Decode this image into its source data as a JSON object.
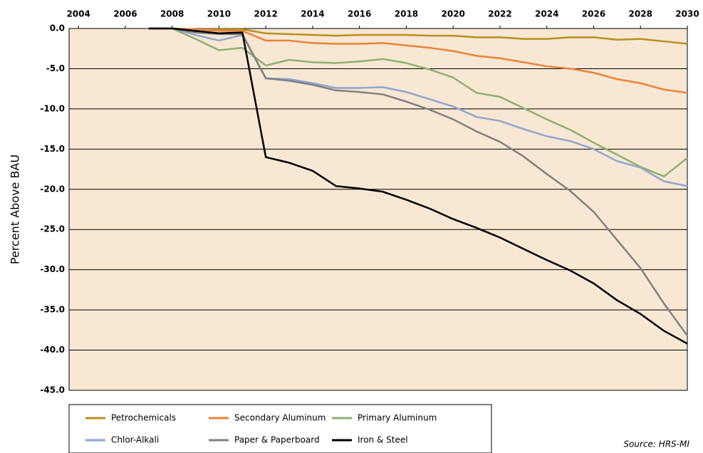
{
  "chart_data": {
    "type": "line",
    "y_label": "Percent Above BAU",
    "source": "Source: HRS-MI",
    "x": [
      2007,
      2008,
      2009,
      2010,
      2011,
      2012,
      2013,
      2014,
      2015,
      2016,
      2017,
      2018,
      2019,
      2020,
      2021,
      2022,
      2023,
      2024,
      2025,
      2026,
      2027,
      2028,
      2029,
      2030
    ],
    "xlim": [
      2003.6,
      2030
    ],
    "xticks": [
      2004,
      2006,
      2008,
      2010,
      2012,
      2014,
      2016,
      2018,
      2020,
      2022,
      2024,
      2026,
      2028,
      2030
    ],
    "ylim": [
      -45,
      0
    ],
    "yticks": [
      {
        "value": 0,
        "label": "0.0"
      },
      {
        "value": -5,
        "label": "-5.0"
      },
      {
        "value": -10,
        "label": "-10.0"
      },
      {
        "value": -15,
        "label": "-15.0"
      },
      {
        "value": -20,
        "label": "-20.0"
      },
      {
        "value": -25,
        "label": "-25.0"
      },
      {
        "value": -30,
        "label": "-30.0"
      },
      {
        "value": -35,
        "label": "-35.0"
      },
      {
        "value": -40,
        "label": "-40.0"
      },
      {
        "value": -45,
        "label": "-45.0"
      }
    ],
    "grid": true,
    "legend": "bottom",
    "series": [
      {
        "name": "Petrochemicals",
        "color": "#b8901f",
        "values": [
          0,
          0,
          -0.1,
          -0.1,
          -0.1,
          -0.6,
          -0.7,
          -0.8,
          -0.9,
          -0.8,
          -0.8,
          -0.8,
          -0.9,
          -0.9,
          -1.1,
          -1.1,
          -1.3,
          -1.3,
          -1.1,
          -1.1,
          -1.4,
          -1.3,
          -1.6,
          -1.9
        ]
      },
      {
        "name": "Secondary Aluminum",
        "color": "#e8843a",
        "values": [
          0,
          0,
          -0.1,
          -0.3,
          -0.3,
          -1.5,
          -1.5,
          -1.8,
          -1.9,
          -1.9,
          -1.8,
          -2.1,
          -2.4,
          -2.8,
          -3.4,
          -3.7,
          -4.2,
          -4.7,
          -5.0,
          -5.5,
          -6.3,
          -6.8,
          -7.6,
          -8.0
        ]
      },
      {
        "name": "Primary Aluminum",
        "color": "#8fb070",
        "values": [
          0,
          0,
          -1.3,
          -2.7,
          -2.4,
          -4.6,
          -3.9,
          -4.2,
          -4.3,
          -4.1,
          -3.8,
          -4.3,
          -5.1,
          -6.1,
          -8.0,
          -8.5,
          -9.9,
          -11.3,
          -12.6,
          -14.2,
          -15.7,
          -17.2,
          -18.4,
          -16.1
        ]
      },
      {
        "name": "Chlor-Alkali",
        "color": "#8ea6cc",
        "values": [
          0,
          0,
          -0.8,
          -1.5,
          -0.8,
          -6.2,
          -6.3,
          -6.8,
          -7.4,
          -7.4,
          -7.3,
          -7.9,
          -8.8,
          -9.7,
          -11.0,
          -11.5,
          -12.5,
          -13.4,
          -14.0,
          -15.0,
          -16.5,
          -17.3,
          -19.0,
          -19.6
        ]
      },
      {
        "name": "Paper & Paperboard",
        "color": "#808080",
        "values": [
          0,
          0,
          -0.5,
          -0.7,
          -0.7,
          -6.2,
          -6.5,
          -7.0,
          -7.7,
          -7.9,
          -8.2,
          -9.1,
          -10.1,
          -11.3,
          -12.8,
          -14.1,
          -15.9,
          -18.1,
          -20.2,
          -22.8,
          -26.3,
          -29.8,
          -34.2,
          -38.2
        ]
      },
      {
        "name": "Iron & Steel",
        "color": "#000000",
        "values": [
          0,
          0,
          -0.3,
          -0.6,
          -0.5,
          -16.0,
          -16.7,
          -17.7,
          -19.6,
          -19.9,
          -20.3,
          -21.3,
          -22.4,
          -23.7,
          -24.8,
          -26.0,
          -27.4,
          -28.8,
          -30.1,
          -31.7,
          -33.8,
          -35.5,
          -37.6,
          -39.2
        ]
      }
    ]
  }
}
